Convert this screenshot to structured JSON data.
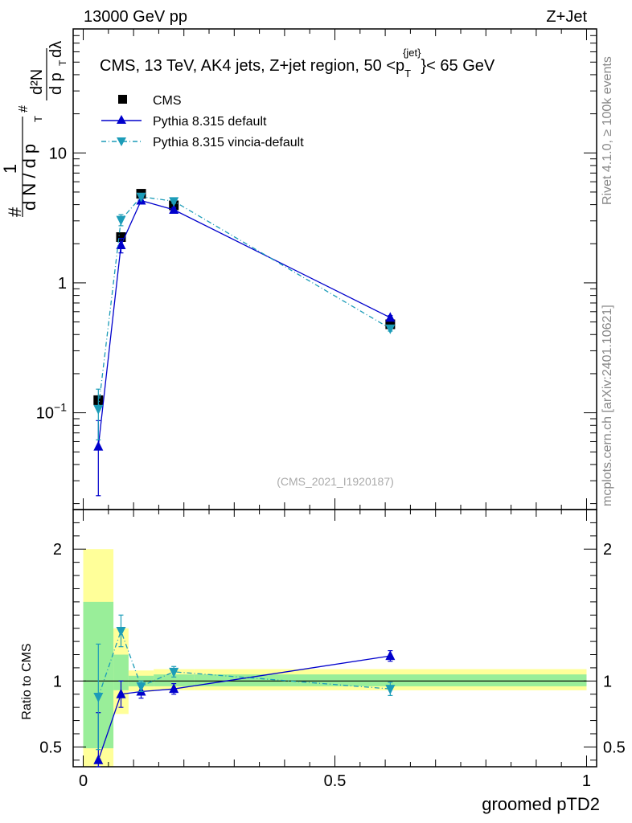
{
  "header": {
    "left": "13000 GeV pp",
    "right": "Z+Jet"
  },
  "side_labels": {
    "rivet": "Rivet 4.1.0, ≥ 100k events",
    "mcplots": "mcplots.cern.ch [arXiv:2401.10621]"
  },
  "chart_data": [
    {
      "type": "line",
      "panel": "main",
      "title": "CMS, 13 TeV, AK4 jets, Z+jet region, 50 <p",
      "title_sub": "T",
      "title_sup": "{jet}",
      "title_tail": "}< 65 GeV",
      "ylabel_parts": {
        "num_frac_top": "1",
        "num_frac_bot": "d N / d p",
        "bot_sub": "T",
        "hash_a": "#",
        "hash_b": "#",
        "d2N": "d²N",
        "dptdl": "d p",
        "dptdl_sub": "T",
        "dlambda": "dλ"
      },
      "yscale": "log",
      "ylim": [
        0.018,
        90
      ],
      "xlim": [
        -0.02,
        1.02
      ],
      "y_ticks": [
        {
          "value": 0.1,
          "base": "10",
          "exp": "−1"
        },
        {
          "value": 1,
          "label": "1"
        },
        {
          "value": 10,
          "label": "10"
        }
      ],
      "watermark": "(CMS_2021_I1920187)",
      "legend": [
        {
          "name": "CMS",
          "marker": "square",
          "color": "#000000"
        },
        {
          "name": "Pythia 8.315 default",
          "marker": "triangle-up",
          "color": "#0000cc"
        },
        {
          "name": "Pythia 8.315 vincia-default",
          "marker": "triangle-down",
          "color": "#1c9cb8"
        }
      ],
      "series": [
        {
          "name": "CMS",
          "x": [
            0.03,
            0.075,
            0.115,
            0.18,
            0.61
          ],
          "y": [
            0.125,
            2.25,
            4.85,
            3.95,
            0.48
          ],
          "err": [
            0.01,
            0.15,
            0.2,
            0.15,
            0.02
          ]
        },
        {
          "name": "Pythia 8.315 default",
          "x": [
            0.03,
            0.075,
            0.115,
            0.18,
            0.61
          ],
          "y": [
            0.055,
            1.95,
            4.3,
            3.65,
            0.54
          ],
          "err": [
            0.032,
            0.25,
            0.15,
            0.15,
            0.02
          ]
        },
        {
          "name": "Pythia 8.315 vincia-default",
          "x": [
            0.03,
            0.075,
            0.115,
            0.18,
            0.61
          ],
          "y": [
            0.107,
            3.05,
            4.6,
            4.25,
            0.445
          ],
          "err": [
            0.045,
            0.3,
            0.15,
            0.15,
            0.02
          ]
        }
      ]
    },
    {
      "type": "line",
      "panel": "ratio",
      "ylabel": "Ratio to CMS",
      "xlabel": "groomed pTD2",
      "ylim": [
        0.35,
        2.3
      ],
      "xlim": [
        -0.02,
        1.02
      ],
      "y_ticks": [
        0.5,
        1,
        2
      ],
      "y_tick_labels": [
        "0.5",
        "1",
        "2"
      ],
      "x_ticks": [
        0,
        0.5,
        1
      ],
      "x_tick_labels": [
        "0",
        "0.5",
        "1"
      ],
      "bands": [
        {
          "x0": 0.0,
          "x1": 0.06,
          "inner": [
            0.49,
            1.6
          ],
          "outer": [
            0.35,
            2.0
          ]
        },
        {
          "x0": 0.06,
          "x1": 0.09,
          "inner": [
            0.93,
            1.2
          ],
          "outer": [
            0.75,
            1.4
          ]
        },
        {
          "x0": 0.09,
          "x1": 0.14,
          "inner": [
            0.96,
            1.04
          ],
          "outer": [
            0.92,
            1.08
          ]
        },
        {
          "x0": 0.14,
          "x1": 0.22,
          "inner": [
            0.96,
            1.05
          ],
          "outer": [
            0.93,
            1.09
          ]
        },
        {
          "x0": 0.22,
          "x1": 1.0,
          "inner": [
            0.96,
            1.05
          ],
          "outer": [
            0.93,
            1.09
          ]
        }
      ],
      "series": [
        {
          "name": "Pythia 8.315 default",
          "x": [
            0.03,
            0.075,
            0.115,
            0.18,
            0.61
          ],
          "y": [
            0.4,
            0.9,
            0.92,
            0.94,
            1.19
          ],
          "err": [
            0.36,
            0.1,
            0.05,
            0.04,
            0.04
          ]
        },
        {
          "name": "Pythia 8.315 vincia-default",
          "x": [
            0.03,
            0.075,
            0.115,
            0.18,
            0.61
          ],
          "y": [
            0.88,
            1.38,
            0.96,
            1.07,
            0.94
          ],
          "err": [
            0.4,
            0.12,
            0.04,
            0.04,
            0.05
          ]
        }
      ]
    }
  ]
}
